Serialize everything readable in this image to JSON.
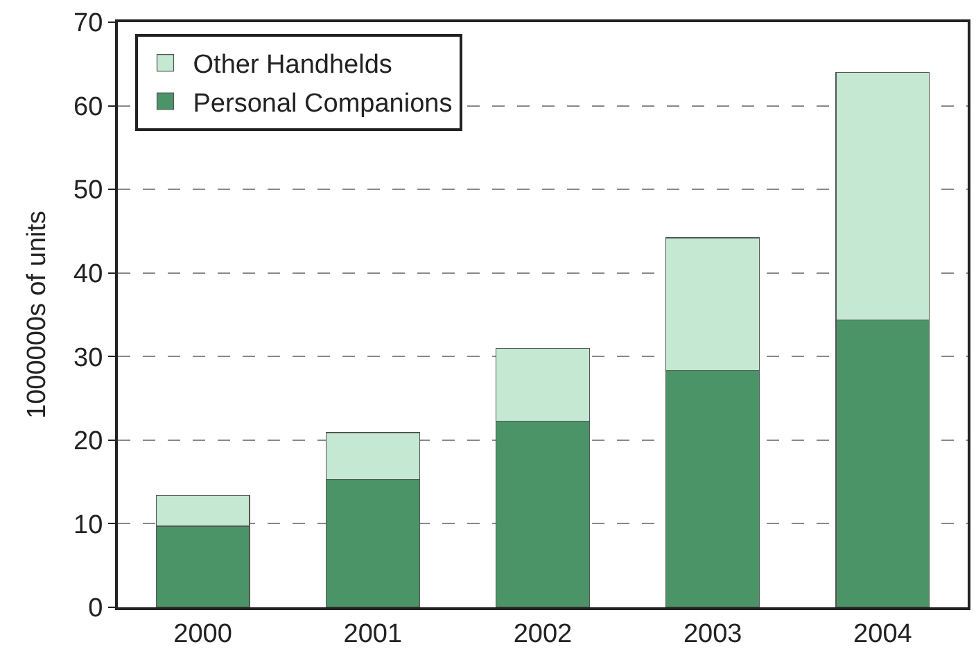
{
  "chart_data": {
    "type": "bar",
    "stacked": true,
    "ylabel": "1000000s of units",
    "categories": [
      "2000",
      "2001",
      "2002",
      "2003",
      "2004"
    ],
    "series": [
      {
        "name": "Personal Companions",
        "color": "#4a9467",
        "values": [
          9.7,
          15.3,
          22.3,
          28.3,
          34.4
        ]
      },
      {
        "name": "Other Handhelds",
        "color": "#c4e8d2",
        "values": [
          3.7,
          5.6,
          8.7,
          15.9,
          29.6
        ]
      }
    ],
    "ylim": [
      0,
      70
    ],
    "yticks": [
      0,
      10,
      20,
      30,
      40,
      50,
      60,
      70
    ],
    "grid": "y",
    "legend": "top left"
  }
}
